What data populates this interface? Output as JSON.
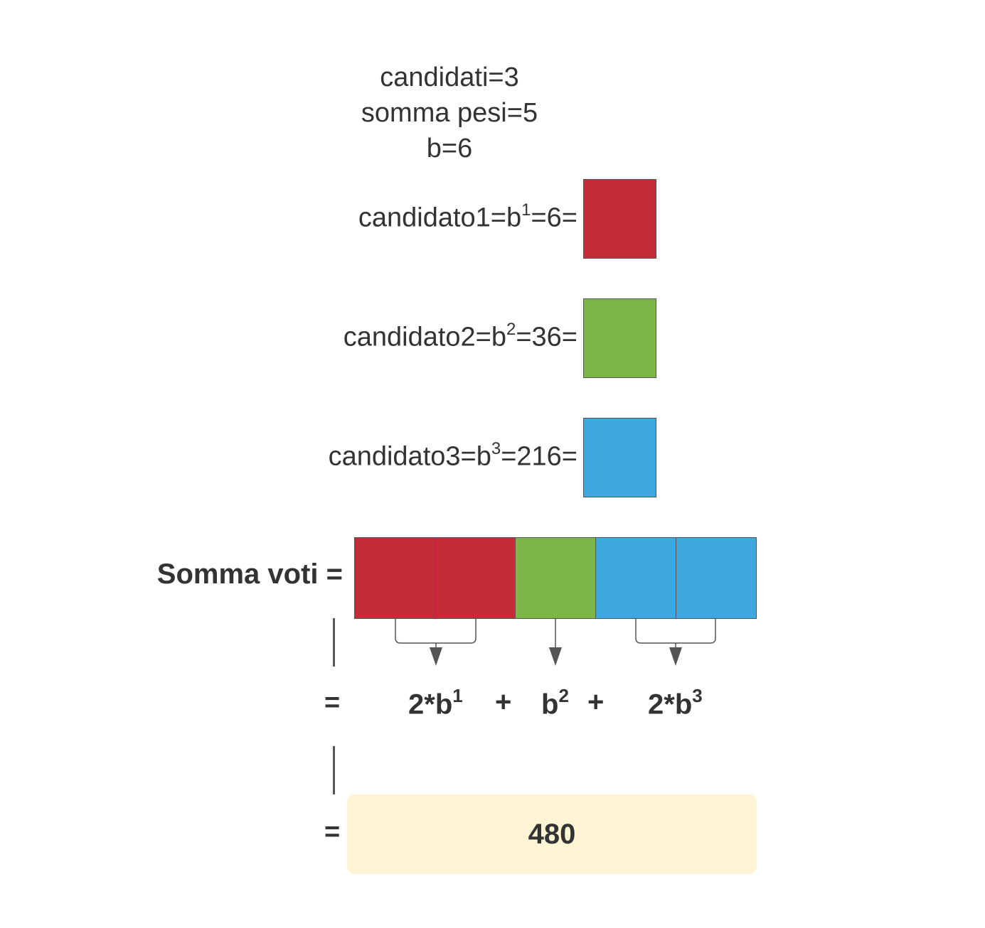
{
  "params": {
    "line1": "candidati=3",
    "line2": "somma pesi=5",
    "line3": "b=6"
  },
  "candidates": [
    {
      "prefix": "candidato1=b",
      "exp": "1",
      "suffix": "=6=",
      "color": "#C62B3A"
    },
    {
      "prefix": "candidato2=b",
      "exp": "2",
      "suffix": "=36=",
      "color": "#7CB646"
    },
    {
      "prefix": "candidato3=b",
      "exp": "3",
      "suffix": "=216=",
      "color": "#3DA7DF"
    }
  ],
  "sum": {
    "label": "Somma voti =",
    "segments": [
      "#C62B3A",
      "#C62B3A",
      "#7CB646",
      "#3DA7DF",
      "#3DA7DF"
    ]
  },
  "equals": "=",
  "expression": {
    "term1_base": "2*b",
    "term1_exp": "1",
    "plus1": "+",
    "term2_base": "b",
    "term2_exp": "2",
    "plus2": "+",
    "term3_base": "2*b",
    "term3_exp": "3"
  },
  "result": {
    "value": "480",
    "background": "#FFF4D4"
  }
}
